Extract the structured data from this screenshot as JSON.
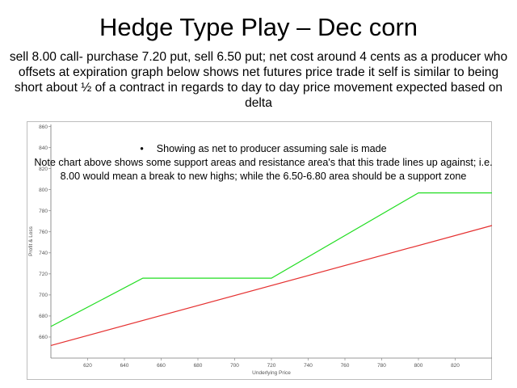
{
  "slide": {
    "title": "Hedge Type Play – Dec corn",
    "subtitle": "sell 8.00 call- purchase 7.20 put, sell 6.50 put; net cost around 4 cents as a producer who offsets at expiration graph below shows net futures price trade it self is similar to being short about ½ of a contract in regards to day to day price movement expected based on delta",
    "bullet_symbol": "•",
    "bullet": "Showing as net to producer assuming sale is made",
    "note": "Note chart above shows some support areas and resistance area's that this trade lines up against; i.e. 8.00 would mean a break to new highs; while the 6.50-6.80 area should be a support zone"
  },
  "chart_data": {
    "type": "line",
    "xlabel": "Underlying Price",
    "ylabel": "Profit & Loss",
    "xlim": [
      600,
      840
    ],
    "ylim": [
      640,
      862
    ],
    "xticks": [
      620,
      640,
      660,
      680,
      700,
      720,
      740,
      760,
      780,
      800,
      820
    ],
    "yticks": [
      660,
      680,
      700,
      720,
      740,
      760,
      780,
      800,
      820,
      840,
      860
    ],
    "grid": false,
    "series": [
      {
        "color": "#22dd22",
        "x": [
          600,
          650,
          720,
          800,
          840
        ],
        "y": [
          670,
          716,
          716,
          797,
          797
        ]
      },
      {
        "color": "#e53030",
        "x": [
          600,
          840
        ],
        "y": [
          652,
          766
        ]
      }
    ]
  }
}
